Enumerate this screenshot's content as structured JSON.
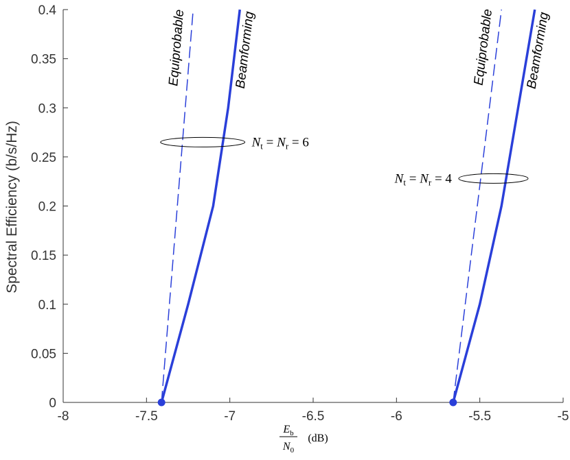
{
  "chart_data": {
    "type": "line",
    "title": "",
    "xlabel": {
      "numerator": "E",
      "numerator_sub": "b",
      "denominator": "N",
      "denominator_sub": "0",
      "unit": "(dB)"
    },
    "ylabel": "Spectral Efficiency (b/s/Hz)",
    "xlim": [
      -8,
      -5
    ],
    "ylim": [
      0,
      0.4
    ],
    "xticks": [
      -8,
      -7.5,
      -7,
      -6.5,
      -6,
      -5.5,
      -5
    ],
    "xtick_labels": [
      "-8",
      "-7.5",
      "-7",
      "-6.5",
      "-6",
      "-5.5",
      "-5"
    ],
    "yticks": [
      0,
      0.05,
      0.1,
      0.15,
      0.2,
      0.25,
      0.3,
      0.35,
      0.4
    ],
    "ytick_labels": [
      "0",
      "0.05",
      "0.1",
      "0.15",
      "0.2",
      "0.25",
      "0.3",
      "0.35",
      "0.4"
    ],
    "grid": false,
    "color": "#2a3fd9",
    "series": [
      {
        "group": "N6",
        "style": "dashed",
        "label": "Equiprobable",
        "x": [
          -7.41,
          -7.22
        ],
        "y": [
          0,
          0.4
        ]
      },
      {
        "group": "N6",
        "style": "solid",
        "label": "Beamforming",
        "x": [
          -7.41,
          -7.25,
          -7.1,
          -7.01,
          -6.94
        ],
        "y": [
          0,
          0.1,
          0.2,
          0.3,
          0.4
        ]
      },
      {
        "group": "N4",
        "style": "dashed",
        "label": "Equiprobable",
        "x": [
          -5.66,
          -5.37
        ],
        "y": [
          0,
          0.4
        ]
      },
      {
        "group": "N4",
        "style": "solid",
        "label": "Beamforming",
        "x": [
          -5.66,
          -5.5,
          -5.37,
          -5.27,
          -5.17
        ],
        "y": [
          0,
          0.1,
          0.2,
          0.3,
          0.4
        ]
      }
    ],
    "markers": [
      {
        "x": -7.41,
        "y": 0
      },
      {
        "x": -5.66,
        "y": 0
      }
    ],
    "annotations": [
      {
        "group": "N6",
        "text": "N_t = N_r = 6",
        "N": "N",
        "t": "t",
        "r": "r",
        "eq": "=",
        "value": "6",
        "y": 0.265
      },
      {
        "group": "N4",
        "text": "N_t = N_r = 4",
        "N": "N",
        "t": "t",
        "r": "r",
        "eq": "=",
        "value": "4",
        "y": 0.228
      }
    ]
  }
}
